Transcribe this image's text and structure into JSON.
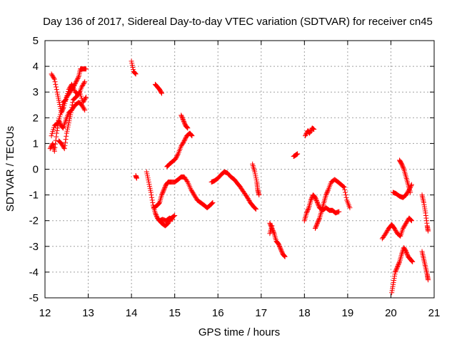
{
  "chart_data": {
    "type": "scatter",
    "title": "Day 136 of 2017, Sidereal Day-to-day VTEC variation (SDTVAR) for receiver cn45",
    "xlabel": "GPS time / hours",
    "ylabel": "SDTVAR / TECUs",
    "xlim": [
      12,
      21
    ],
    "ylim": [
      -5,
      5
    ],
    "xticks": [
      "12",
      "13",
      "14",
      "15",
      "16",
      "17",
      "18",
      "19",
      "20",
      "21"
    ],
    "yticks": [
      "-5",
      "-4",
      "-3",
      "-2",
      "-1",
      "0",
      "1",
      "2",
      "3",
      "4",
      "5"
    ],
    "grid": true,
    "marker": "+",
    "color": "#ff0000",
    "segments": [
      [
        [
          12.15,
          3.7
        ],
        [
          12.22,
          3.5
        ],
        [
          12.28,
          3.0
        ],
        [
          12.33,
          2.6
        ],
        [
          12.38,
          2.2
        ],
        [
          12.43,
          2.4
        ],
        [
          12.5,
          2.8
        ],
        [
          12.58,
          3.0
        ],
        [
          12.66,
          3.2
        ],
        [
          12.72,
          3.4
        ],
        [
          12.78,
          3.6
        ],
        [
          12.82,
          3.9
        ],
        [
          12.88,
          3.9
        ],
        [
          12.95,
          3.9
        ]
      ],
      [
        [
          12.12,
          0.8
        ],
        [
          12.18,
          1.0
        ],
        [
          12.22,
          0.7
        ],
        [
          12.27,
          1.4
        ],
        [
          12.32,
          1.9
        ],
        [
          12.37,
          1.7
        ],
        [
          12.42,
          1.6
        ],
        [
          12.48,
          1.9
        ],
        [
          12.55,
          2.2
        ],
        [
          12.62,
          2.3
        ],
        [
          12.7,
          2.5
        ],
        [
          12.78,
          2.6
        ],
        [
          12.85,
          2.5
        ],
        [
          12.92,
          2.3
        ]
      ],
      [
        [
          12.15,
          1.3
        ],
        [
          12.22,
          1.7
        ],
        [
          12.3,
          1.8
        ],
        [
          12.37,
          2.2
        ],
        [
          12.42,
          2.6
        ],
        [
          12.48,
          2.7
        ],
        [
          12.55,
          3.1
        ],
        [
          12.62,
          3.3
        ],
        [
          12.7,
          3.0
        ],
        [
          12.78,
          2.9
        ],
        [
          12.85,
          3.2
        ],
        [
          12.92,
          3.4
        ]
      ],
      [
        [
          12.32,
          1.1
        ],
        [
          12.38,
          1.0
        ],
        [
          12.45,
          0.8
        ],
        [
          12.5,
          1.4
        ],
        [
          12.55,
          1.8
        ],
        [
          12.6,
          2.2
        ],
        [
          12.65,
          2.7
        ],
        [
          12.72,
          2.8
        ],
        [
          12.8,
          3.0
        ],
        [
          12.88,
          2.6
        ],
        [
          12.95,
          2.8
        ]
      ],
      [
        [
          14.0,
          4.2
        ],
        [
          14.05,
          3.8
        ],
        [
          14.1,
          3.7
        ]
      ],
      [
        [
          14.1,
          -0.25
        ],
        [
          14.12,
          -0.35
        ]
      ],
      [
        [
          14.35,
          -0.1
        ],
        [
          14.4,
          -0.5
        ],
        [
          14.45,
          -0.9
        ],
        [
          14.5,
          -1.4
        ],
        [
          14.55,
          -1.7
        ],
        [
          14.6,
          -1.9
        ],
        [
          14.65,
          -2.0
        ],
        [
          14.7,
          -2.1
        ],
        [
          14.78,
          -2.2
        ],
        [
          14.85,
          -2.1
        ],
        [
          14.92,
          -1.9
        ],
        [
          15.0,
          -1.8
        ]
      ],
      [
        [
          14.55,
          3.3
        ],
        [
          14.6,
          3.2
        ],
        [
          14.65,
          3.1
        ],
        [
          14.7,
          2.95
        ]
      ],
      [
        [
          14.52,
          -1.5
        ],
        [
          14.6,
          -1.4
        ],
        [
          14.65,
          -1.3
        ],
        [
          14.7,
          -1.0
        ],
        [
          14.75,
          -0.8
        ],
        [
          14.8,
          -0.6
        ],
        [
          14.85,
          -0.5
        ],
        [
          14.92,
          -0.5
        ],
        [
          15.0,
          -0.5
        ],
        [
          15.08,
          -0.4
        ],
        [
          15.15,
          -0.3
        ],
        [
          15.22,
          -0.3
        ],
        [
          15.3,
          -0.5
        ],
        [
          15.38,
          -0.8
        ],
        [
          15.45,
          -1.0
        ],
        [
          15.52,
          -1.2
        ],
        [
          15.6,
          -1.3
        ],
        [
          15.68,
          -1.4
        ],
        [
          15.75,
          -1.5
        ],
        [
          15.82,
          -1.4
        ],
        [
          15.88,
          -1.3
        ]
      ],
      [
        [
          14.82,
          0.1
        ],
        [
          14.88,
          0.2
        ],
        [
          14.95,
          0.3
        ],
        [
          15.02,
          0.4
        ],
        [
          15.08,
          0.6
        ],
        [
          15.15,
          0.9
        ],
        [
          15.22,
          1.1
        ],
        [
          15.28,
          1.3
        ],
        [
          15.35,
          1.4
        ],
        [
          15.4,
          1.3
        ]
      ],
      [
        [
          15.15,
          2.1
        ],
        [
          15.2,
          1.9
        ],
        [
          15.25,
          1.7
        ],
        [
          15.3,
          1.6
        ]
      ],
      [
        [
          14.65,
          -2.0
        ],
        [
          14.72,
          -1.95
        ],
        [
          14.8,
          -2.0
        ],
        [
          14.88,
          -1.9
        ],
        [
          14.95,
          -1.95
        ]
      ],
      [
        [
          15.85,
          -0.5
        ],
        [
          15.92,
          -0.45
        ],
        [
          16.0,
          -0.35
        ],
        [
          16.08,
          -0.2
        ],
        [
          16.15,
          -0.1
        ],
        [
          16.22,
          -0.15
        ],
        [
          16.3,
          -0.3
        ],
        [
          16.38,
          -0.4
        ],
        [
          16.45,
          -0.55
        ],
        [
          16.52,
          -0.7
        ],
        [
          16.6,
          -0.9
        ],
        [
          16.68,
          -1.1
        ],
        [
          16.75,
          -1.3
        ],
        [
          16.82,
          -1.45
        ],
        [
          16.88,
          -1.55
        ]
      ],
      [
        [
          16.8,
          0.2
        ],
        [
          16.85,
          -0.1
        ],
        [
          16.9,
          -0.5
        ],
        [
          16.92,
          -0.8
        ],
        [
          16.95,
          -1.0
        ]
      ],
      [
        [
          17.2,
          -2.1
        ],
        [
          17.25,
          -2.3
        ],
        [
          17.3,
          -2.5
        ],
        [
          17.35,
          -2.8
        ],
        [
          17.4,
          -2.9
        ],
        [
          17.45,
          -3.1
        ],
        [
          17.5,
          -3.3
        ],
        [
          17.55,
          -3.4
        ]
      ],
      [
        [
          17.2,
          -2.5
        ],
        [
          17.25,
          -2.2
        ]
      ],
      [
        [
          17.75,
          0.5
        ],
        [
          17.8,
          0.55
        ],
        [
          17.84,
          0.6
        ]
      ],
      [
        [
          18.02,
          1.3
        ],
        [
          18.08,
          1.5
        ],
        [
          18.12,
          1.4
        ],
        [
          18.18,
          1.6
        ],
        [
          18.22,
          1.55
        ]
      ],
      [
        [
          18.0,
          -2.0
        ],
        [
          18.05,
          -1.7
        ],
        [
          18.1,
          -1.5
        ],
        [
          18.15,
          -1.2
        ],
        [
          18.2,
          -1.0
        ],
        [
          18.25,
          -1.1
        ],
        [
          18.3,
          -1.3
        ],
        [
          18.35,
          -1.5
        ],
        [
          18.42,
          -1.6
        ],
        [
          18.5,
          -1.5
        ],
        [
          18.58,
          -1.6
        ],
        [
          18.65,
          -1.6
        ],
        [
          18.72,
          -1.7
        ],
        [
          18.8,
          -1.65
        ]
      ],
      [
        [
          18.25,
          -2.3
        ],
        [
          18.3,
          -2.1
        ],
        [
          18.35,
          -1.9
        ],
        [
          18.4,
          -1.6
        ],
        [
          18.45,
          -1.3
        ],
        [
          18.5,
          -1.0
        ],
        [
          18.55,
          -0.8
        ],
        [
          18.62,
          -0.5
        ],
        [
          18.7,
          -0.4
        ],
        [
          18.78,
          -0.5
        ],
        [
          18.85,
          -0.6
        ],
        [
          18.92,
          -0.7
        ],
        [
          18.98,
          -1.2
        ],
        [
          19.05,
          -1.5
        ]
      ],
      [
        [
          19.8,
          -2.7
        ],
        [
          19.88,
          -2.5
        ],
        [
          19.95,
          -2.3
        ],
        [
          20.02,
          -2.15
        ],
        [
          20.08,
          -2.3
        ],
        [
          20.15,
          -2.5
        ],
        [
          20.22,
          -2.6
        ],
        [
          20.28,
          -2.3
        ],
        [
          20.35,
          -2.1
        ],
        [
          20.42,
          -1.9
        ],
        [
          20.48,
          -2.0
        ]
      ],
      [
        [
          20.05,
          -0.9
        ],
        [
          20.12,
          -0.95
        ],
        [
          20.2,
          -1.05
        ],
        [
          20.28,
          -1.1
        ],
        [
          20.35,
          -1.0
        ],
        [
          20.42,
          -0.8
        ],
        [
          20.48,
          -0.6
        ]
      ],
      [
        [
          20.2,
          0.35
        ],
        [
          20.25,
          0.2
        ],
        [
          20.3,
          0.0
        ],
        [
          20.35,
          -0.3
        ],
        [
          20.4,
          -0.6
        ],
        [
          20.45,
          -0.9
        ]
      ],
      [
        [
          20.02,
          -4.8
        ],
        [
          20.06,
          -4.4
        ],
        [
          20.1,
          -4.0
        ],
        [
          20.15,
          -3.8
        ],
        [
          20.2,
          -3.6
        ],
        [
          20.25,
          -3.3
        ],
        [
          20.3,
          -3.05
        ],
        [
          20.35,
          -3.2
        ],
        [
          20.4,
          -3.4
        ],
        [
          20.45,
          -3.5
        ],
        [
          20.5,
          -3.6
        ]
      ],
      [
        [
          20.72,
          -1.0
        ],
        [
          20.76,
          -1.3
        ],
        [
          20.8,
          -1.7
        ],
        [
          20.84,
          -2.2
        ],
        [
          20.86,
          -2.4
        ]
      ],
      [
        [
          20.72,
          -3.2
        ],
        [
          20.76,
          -3.5
        ],
        [
          20.8,
          -3.8
        ],
        [
          20.84,
          -4.1
        ],
        [
          20.86,
          -4.3
        ]
      ]
    ]
  }
}
